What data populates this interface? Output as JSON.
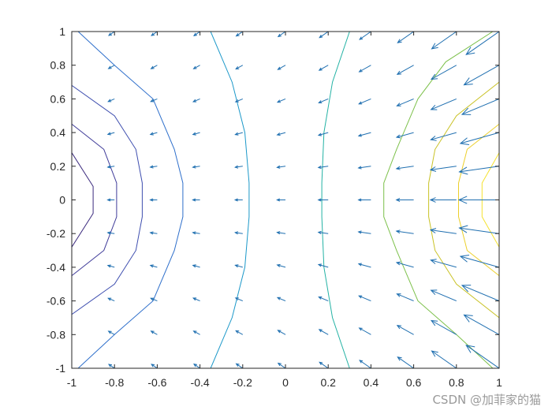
{
  "chart_data": {
    "type": "contour + quiver",
    "title": "",
    "xlabel": "",
    "ylabel": "",
    "xlim": [
      -1,
      1
    ],
    "ylim": [
      -1,
      1
    ],
    "grid": false,
    "x_ticks": [
      "-1",
      "-0.8",
      "-0.6",
      "-0.4",
      "-0.2",
      "0",
      "0.2",
      "0.4",
      "0.6",
      "0.8",
      "1"
    ],
    "y_ticks": [
      "1",
      "0.8",
      "0.6",
      "0.4",
      "0.2",
      "0",
      "-0.2",
      "-0.4",
      "-0.6",
      "-0.8",
      "-1"
    ],
    "colors": {
      "axes": "#262626",
      "quiver": "#1f6fb0"
    },
    "contours": [
      {
        "color": "#3b2a7e",
        "points": [
          [
            -1,
            -0.28
          ],
          [
            -0.9,
            -0.08
          ],
          [
            -0.9,
            0.08
          ],
          [
            -1,
            0.28
          ]
        ]
      },
      {
        "color": "#3f3b99",
        "points": [
          [
            -1,
            -0.45
          ],
          [
            -0.85,
            -0.3
          ],
          [
            -0.79,
            -0.1
          ],
          [
            -0.79,
            0.1
          ],
          [
            -0.85,
            0.3
          ],
          [
            -1,
            0.45
          ]
        ]
      },
      {
        "color": "#3e4eaf",
        "points": [
          [
            -1,
            -0.68
          ],
          [
            -0.8,
            -0.5
          ],
          [
            -0.7,
            -0.3
          ],
          [
            -0.67,
            -0.1
          ],
          [
            -0.67,
            0.1
          ],
          [
            -0.7,
            0.3
          ],
          [
            -0.8,
            0.5
          ],
          [
            -1,
            0.68
          ]
        ]
      },
      {
        "color": "#2e6fcb",
        "points": [
          [
            -0.97,
            -1
          ],
          [
            -0.8,
            -0.8
          ],
          [
            -0.62,
            -0.6
          ],
          [
            -0.52,
            -0.3
          ],
          [
            -0.48,
            -0.1
          ],
          [
            -0.48,
            0.1
          ],
          [
            -0.52,
            0.3
          ],
          [
            -0.62,
            0.6
          ],
          [
            -0.8,
            0.8
          ],
          [
            -0.97,
            1
          ]
        ]
      },
      {
        "color": "#1b98c9",
        "points": [
          [
            -0.35,
            -1
          ],
          [
            -0.25,
            -0.7
          ],
          [
            -0.19,
            -0.4
          ],
          [
            -0.17,
            -0.1
          ],
          [
            -0.17,
            0.1
          ],
          [
            -0.19,
            0.4
          ],
          [
            -0.25,
            0.7
          ],
          [
            -0.35,
            1
          ]
        ]
      },
      {
        "color": "#23b2a4",
        "points": [
          [
            0.3,
            -1
          ],
          [
            0.22,
            -0.7
          ],
          [
            0.18,
            -0.4
          ],
          [
            0.17,
            -0.1
          ],
          [
            0.17,
            0.1
          ],
          [
            0.18,
            0.4
          ],
          [
            0.22,
            0.7
          ],
          [
            0.3,
            1
          ]
        ]
      },
      {
        "color": "#7cc04a",
        "points": [
          [
            0.97,
            -1
          ],
          [
            0.8,
            -0.8
          ],
          [
            0.62,
            -0.6
          ],
          [
            0.52,
            -0.3
          ],
          [
            0.46,
            -0.1
          ],
          [
            0.46,
            0.1
          ],
          [
            0.52,
            0.3
          ],
          [
            0.62,
            0.6
          ],
          [
            0.75,
            0.82
          ],
          [
            0.97,
            1
          ]
        ]
      },
      {
        "color": "#c9c226",
        "points": [
          [
            1,
            -0.7
          ],
          [
            0.8,
            -0.5
          ],
          [
            0.7,
            -0.3
          ],
          [
            0.67,
            -0.1
          ],
          [
            0.67,
            0.1
          ],
          [
            0.7,
            0.3
          ],
          [
            0.8,
            0.5
          ],
          [
            1,
            0.7
          ]
        ]
      },
      {
        "color": "#eccf2a",
        "points": [
          [
            1,
            -0.45
          ],
          [
            0.85,
            -0.3
          ],
          [
            0.81,
            -0.1
          ],
          [
            0.81,
            0.1
          ],
          [
            0.85,
            0.3
          ],
          [
            1,
            0.45
          ]
        ]
      },
      {
        "color": "#f5e22e",
        "points": [
          [
            1,
            -0.28
          ],
          [
            0.92,
            -0.1
          ],
          [
            0.92,
            0.1
          ],
          [
            1,
            0.28
          ]
        ]
      }
    ],
    "quiver": {
      "x": [
        -0.8,
        -0.6,
        -0.4,
        -0.2,
        0,
        0.2,
        0.4,
        0.6,
        0.8,
        1.0
      ],
      "y": [
        1.0,
        0.8,
        0.6,
        0.4,
        0.2,
        0.0,
        -0.2,
        -0.4,
        -0.6,
        -0.8,
        -1.0
      ],
      "scale": 0.85
    }
  },
  "watermark": "CSDN @加菲家的猫"
}
